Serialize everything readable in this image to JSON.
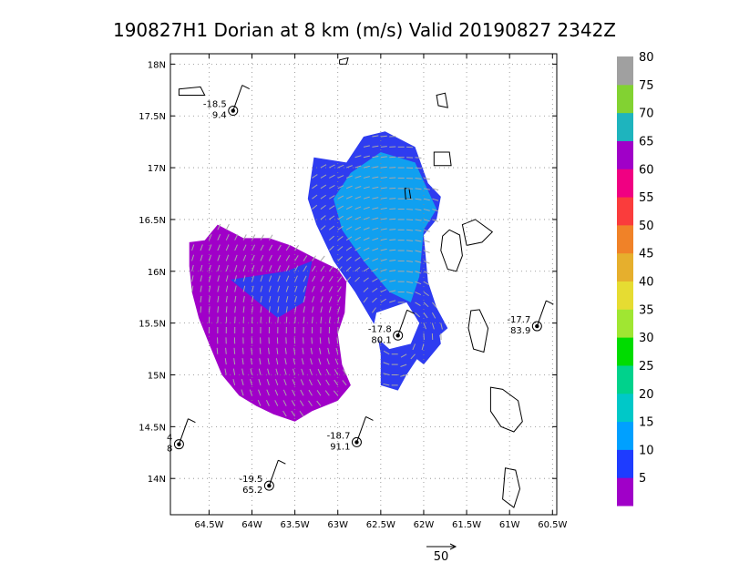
{
  "chart_data": {
    "type": "heatmap",
    "title": "190827H1 Dorian at 8 km (m/s) Valid 20190827 2342Z",
    "x_ticks": [
      "64.5W",
      "64W",
      "63.5W",
      "63W",
      "62.5W",
      "62W",
      "61.5W",
      "61W",
      "60.5W"
    ],
    "y_ticks": [
      "18N",
      "17.5N",
      "17N",
      "16.5N",
      "16N",
      "15.5N",
      "15N",
      "14.5N",
      "14N"
    ],
    "xlim": [
      -64.95,
      -60.45
    ],
    "ylim": [
      13.65,
      18.1
    ],
    "grid": true,
    "colorbar": {
      "labels": [
        "5",
        "10",
        "15",
        "20",
        "25",
        "30",
        "35",
        "40",
        "45",
        "50",
        "55",
        "60",
        "65",
        "70",
        "75",
        "80"
      ],
      "colors": [
        "#a000c8",
        "#1e3cff",
        "#00a0ff",
        "#00c8c8",
        "#00d28c",
        "#00dc00",
        "#a0e632",
        "#e6dc32",
        "#e6af2d",
        "#f08228",
        "#fa3c3c",
        "#f00082",
        "#a000c8",
        "#1eb4be",
        "#82d232",
        "#a0a0a0"
      ]
    },
    "stations": [
      {
        "lon": -64.22,
        "lat": 17.55,
        "top": "-18.5",
        "bottom": "9.4"
      },
      {
        "lon": -62.3,
        "lat": 15.38,
        "top": "-17.8",
        "bottom": "80.1"
      },
      {
        "lon": -60.68,
        "lat": 15.47,
        "top": "-17.7",
        "bottom": "83.9"
      },
      {
        "lon": -62.78,
        "lat": 14.35,
        "top": "-18.7",
        "bottom": "91.1"
      },
      {
        "lon": -63.8,
        "lat": 13.93,
        "top": "-19.5",
        "bottom": "65.2"
      },
      {
        "lon": -64.85,
        "lat": 14.33,
        "top": "4",
        "bottom": "8"
      }
    ],
    "reference_vector": "50"
  }
}
